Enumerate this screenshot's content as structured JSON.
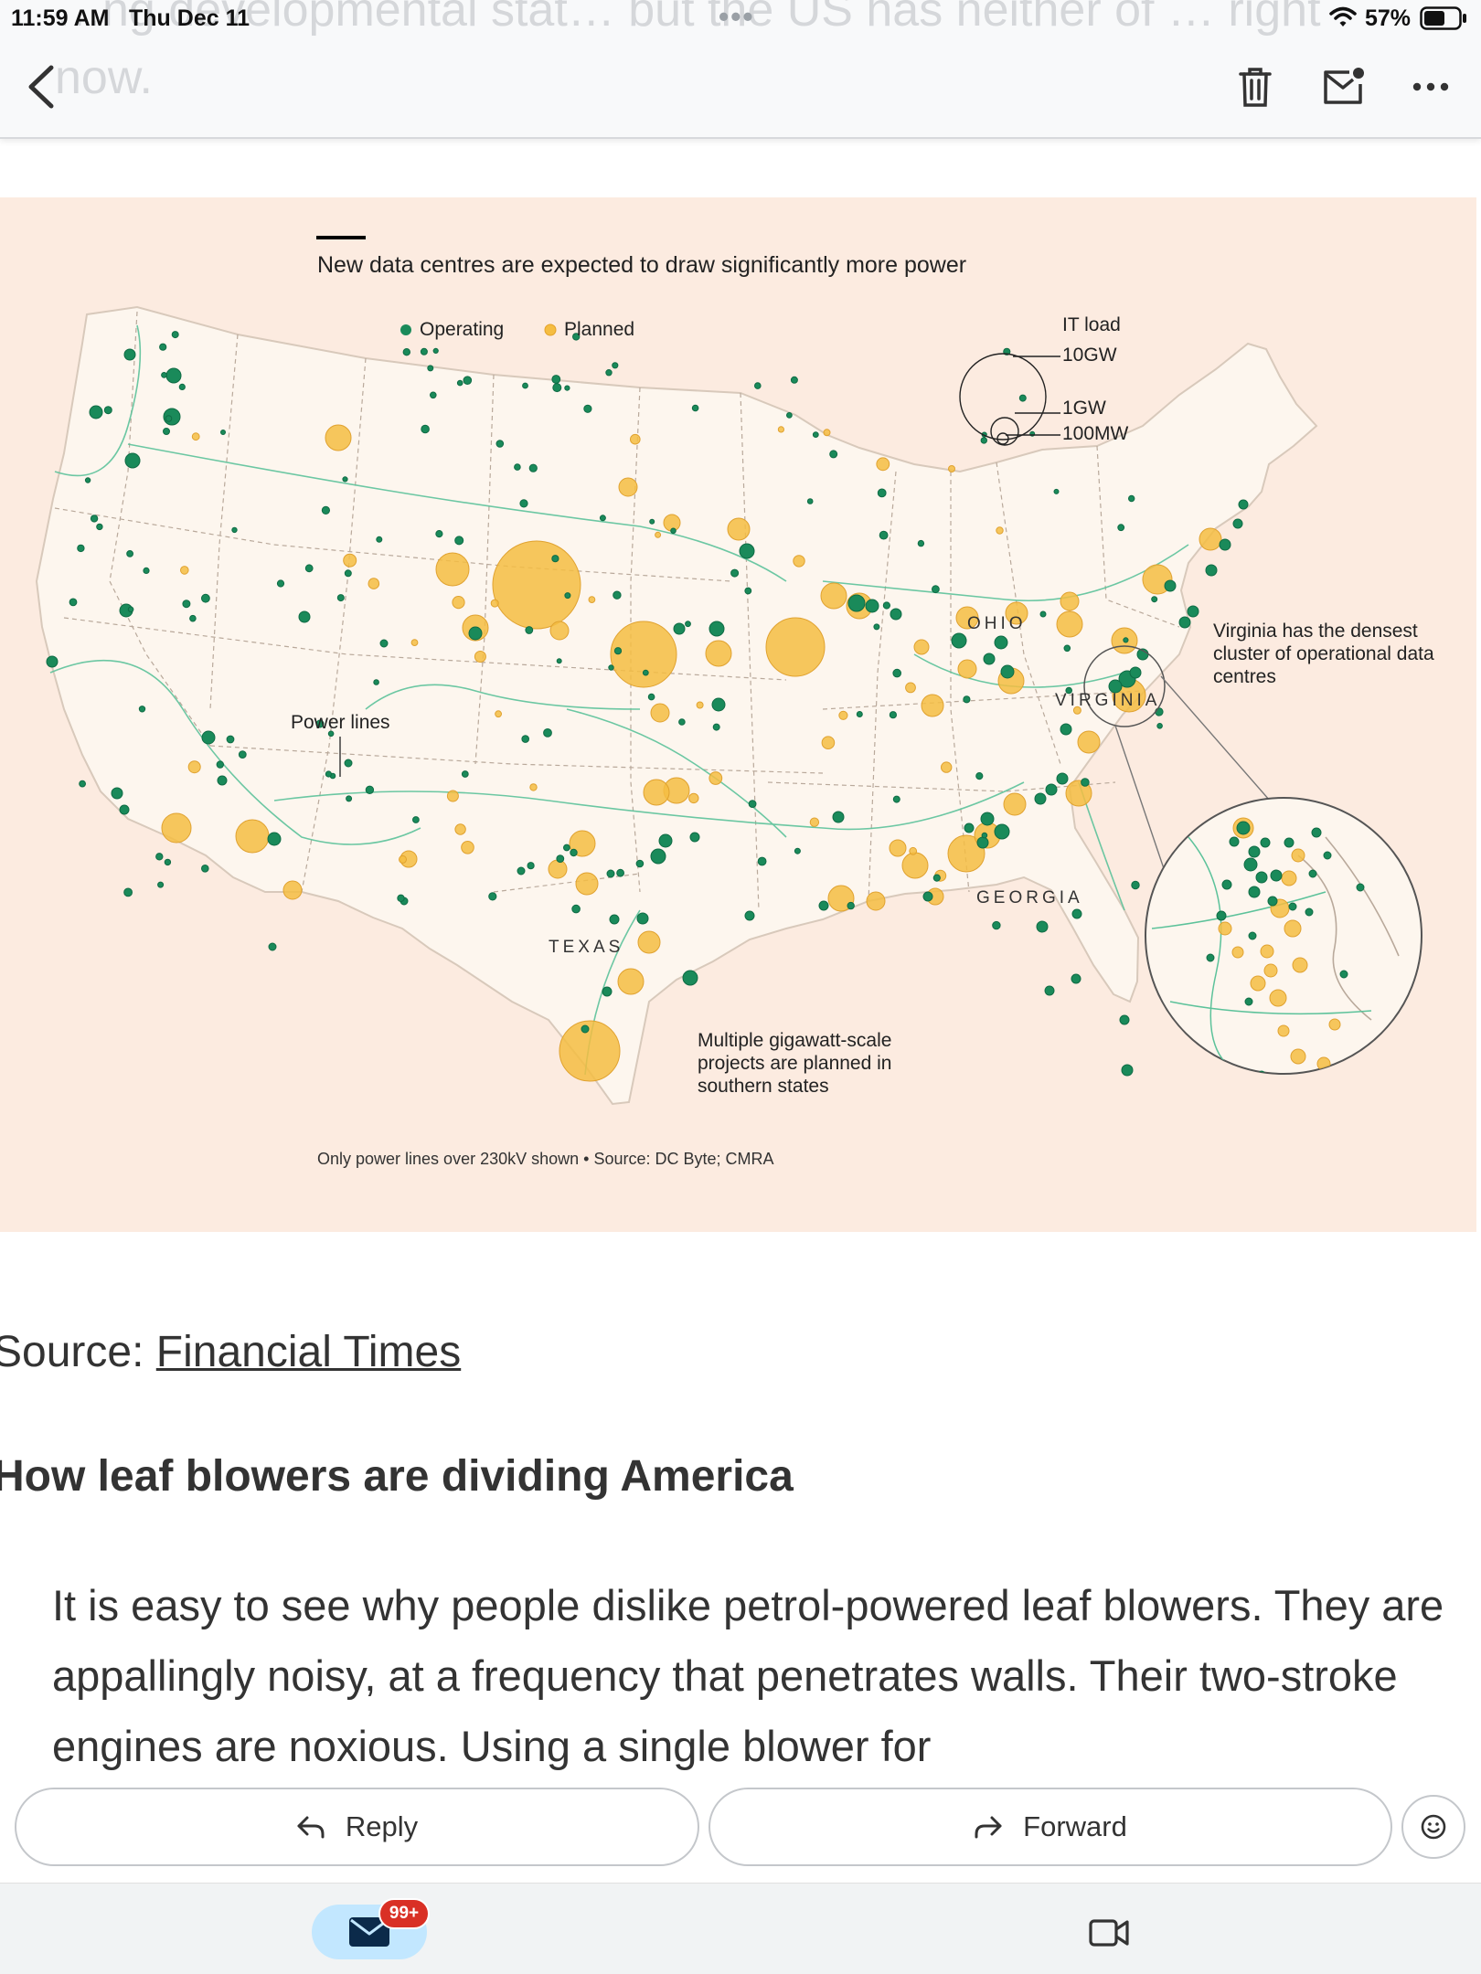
{
  "status_bar": {
    "time": "11:59 AM",
    "date": "Thu Dec 11",
    "dots": "•••",
    "battery": "57%",
    "wifi_icon": "wifi-icon",
    "battery_icon": "battery-icon"
  },
  "toolbar": {
    "scrolled_text": "…ng developmental stat… but the US has neither of … right now.",
    "back_icon": "chevron-left-icon",
    "delete_icon": "trash-icon",
    "mark_unread_icon": "mail-unread-icon",
    "more_icon": "more-horizontal-icon"
  },
  "figure": {
    "title": "New data centres are expected to draw significantly more power",
    "legend": {
      "operating": "Operating",
      "planned": "Planned",
      "operating_color": "#1a8a5a",
      "planned_color": "#f5bd42"
    },
    "size_legend": {
      "title": "IT load",
      "large": "10GW",
      "medium": "1GW",
      "small": "100MW"
    },
    "annotations": {
      "power_lines": "Power lines",
      "virginia_note": "Virginia has the densest cluster of operational data centres",
      "south_note": "Multiple gigawatt-scale projects are planned in southern states"
    },
    "states": {
      "ohio": "OHIO",
      "virginia": "VIRGINIA",
      "georgia": "GEORGIA",
      "texas": "TEXAS"
    },
    "source": "Only power lines over 230kV shown • Source: DC Byte; CMRA",
    "colors": {
      "background": "#fcebe0",
      "land": "#fdf6ee",
      "power_line": "#5cc29a"
    }
  },
  "article": {
    "source_prefix": "Source: ",
    "source_link": "Financial Times",
    "heading": "How leaf blowers are dividing America",
    "body": "It is easy to see why people dislike petrol-powered leaf blowers. They are appallingly noisy, at a frequency that penetrates walls. Their two-stroke engines are noxious. Using a single blower for"
  },
  "actions": {
    "reply": "Reply",
    "forward": "Forward",
    "reply_icon": "reply-arrow-icon",
    "forward_icon": "forward-arrow-icon",
    "emoji_icon": "emoji-smile-icon"
  },
  "bottom_nav": {
    "mail_badge": "99+",
    "mail_icon": "mail-icon",
    "meet_icon": "video-camera-icon"
  }
}
